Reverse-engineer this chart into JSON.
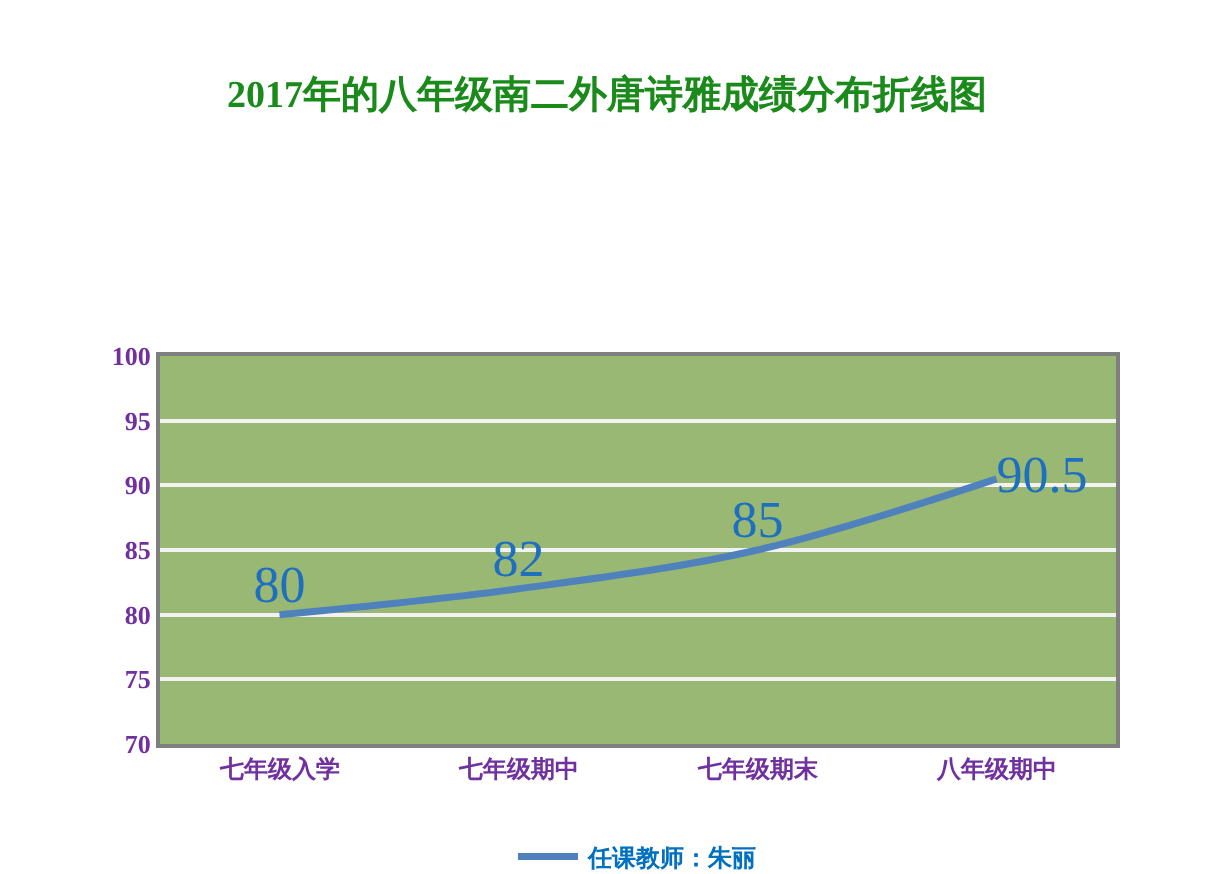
{
  "chart_data": {
    "type": "line",
    "title": "2017年的八年级南二外唐诗雅成绩分布折线图",
    "categories": [
      "七年级入学",
      "七年级期中",
      "七年级期末",
      "八年级期中"
    ],
    "series": [
      {
        "name": "任课教师：朱丽",
        "color": "#4f81bd",
        "values": [
          80,
          82,
          85,
          90.5
        ]
      }
    ],
    "ylim": [
      70,
      100
    ],
    "yticks": [
      70,
      75,
      80,
      85,
      90,
      95,
      100
    ],
    "grid": "y",
    "legend": "bottom",
    "data_labels": true,
    "marker": "none",
    "line_style": "solid"
  }
}
